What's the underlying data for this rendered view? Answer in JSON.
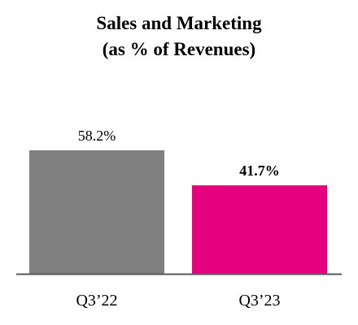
{
  "chart_data": {
    "type": "bar",
    "title_lines": [
      "Sales and Marketing",
      "(as % of Revenues)"
    ],
    "categories": [
      "Q3’22",
      "Q3’23"
    ],
    "values": [
      58.2,
      41.7
    ],
    "value_labels": [
      "58.2%",
      "41.7%"
    ],
    "bar_colors": [
      "#808080",
      "#e6007e"
    ],
    "bold_value_labels": [
      false,
      true
    ],
    "ylim": [
      0,
      58.2
    ],
    "axis_color": "#595959",
    "grid": false,
    "legend": false
  }
}
